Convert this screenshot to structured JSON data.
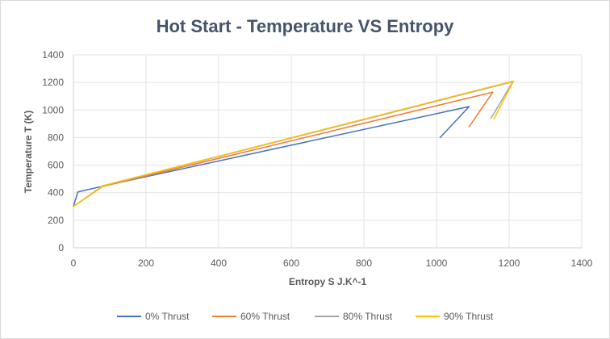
{
  "chart_data": {
    "type": "line",
    "title": "Hot Start - Temperature VS Entropy",
    "xlabel": "Entropy S J.K^-1",
    "ylabel": "Temperature T (K)",
    "xlim": [
      0,
      1400
    ],
    "ylim": [
      0,
      1400
    ],
    "x_ticks": [
      "0",
      "200",
      "400",
      "600",
      "800",
      "1000",
      "1200",
      "1400"
    ],
    "y_ticks": [
      "0",
      "200",
      "400",
      "600",
      "800",
      "1000",
      "1200",
      "1400"
    ],
    "grid": true,
    "legend_position": "bottom",
    "series": [
      {
        "name": "0% Thrust",
        "color": "#4472c4",
        "points": [
          [
            0,
            300
          ],
          [
            12,
            405
          ],
          [
            85,
            450
          ],
          [
            1090,
            1025
          ],
          [
            1010,
            800
          ]
        ]
      },
      {
        "name": "60% Thrust",
        "color": "#ed7d31",
        "points": [
          [
            0,
            300
          ],
          [
            80,
            445
          ],
          [
            1155,
            1130
          ],
          [
            1090,
            880
          ]
        ]
      },
      {
        "name": "80% Thrust",
        "color": "#a5a5a5",
        "points": [
          [
            0,
            300
          ],
          [
            80,
            448
          ],
          [
            1210,
            1205
          ],
          [
            1150,
            940
          ]
        ]
      },
      {
        "name": "90% Thrust",
        "color": "#ffc000",
        "points": [
          [
            0,
            300
          ],
          [
            80,
            450
          ],
          [
            1212,
            1210
          ],
          [
            1158,
            935
          ]
        ]
      }
    ]
  }
}
